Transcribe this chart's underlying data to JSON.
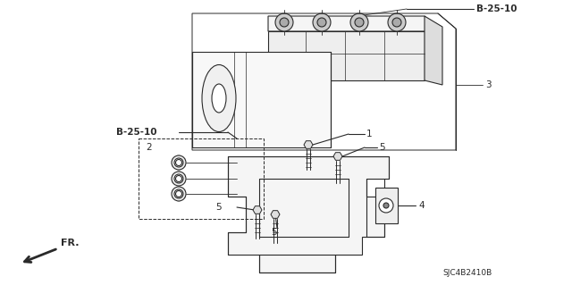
{
  "bg_color": "#ffffff",
  "line_color": "#2a2a2a",
  "lw": 0.8,
  "part_code": "SJC4B2410B",
  "ref_label": "FR.",
  "labels": {
    "b25_10_top": "B-25-10",
    "b25_10_mid": "B-25-10",
    "n1": "1",
    "n2": "2",
    "n3": "3",
    "n4": "4",
    "n5a": "5",
    "n5b": "5",
    "n5c": "5"
  },
  "fig_width": 6.4,
  "fig_height": 3.19,
  "dpi": 100
}
